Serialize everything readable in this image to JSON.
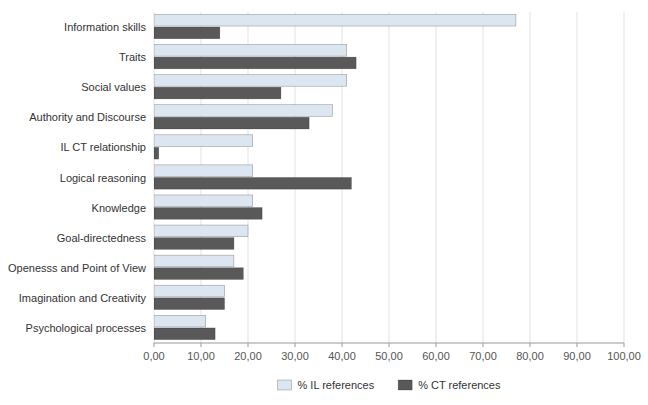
{
  "chart_data": {
    "type": "bar",
    "orientation": "horizontal",
    "categories": [
      "Psychological processes",
      "Imagination and Creativity",
      "Openesss and Point of View",
      "Goal-directedness",
      "Knowledge",
      "Logical reasoning",
      "IL CT relationship",
      "Authority and Discourse",
      "Social values",
      "Traits",
      "Information skills"
    ],
    "series": [
      {
        "name": "% IL references",
        "color": "#dce6f1",
        "values": [
          11,
          15,
          17,
          20,
          21,
          21,
          21,
          38,
          41,
          41,
          77
        ]
      },
      {
        "name": "% CT references",
        "color": "#595959",
        "values": [
          13,
          15,
          19,
          17,
          23,
          42,
          1,
          33,
          27,
          43,
          14
        ]
      }
    ],
    "xlim": [
      0,
      100
    ],
    "xticks": [
      {
        "value": 0,
        "label": "0,00"
      },
      {
        "value": 10,
        "label": "10,00"
      },
      {
        "value": 20,
        "label": "20,00"
      },
      {
        "value": 30,
        "label": "30,00"
      },
      {
        "value": 40,
        "label": "40,00"
      },
      {
        "value": 50,
        "label": "50,00"
      },
      {
        "value": 60,
        "label": "60,00"
      },
      {
        "value": 70,
        "label": "70,00"
      },
      {
        "value": 80,
        "label": "80,00"
      },
      {
        "value": 90,
        "label": "90,00"
      },
      {
        "value": 100,
        "label": "100,00"
      }
    ],
    "grid": true,
    "legend": "bottom"
  }
}
